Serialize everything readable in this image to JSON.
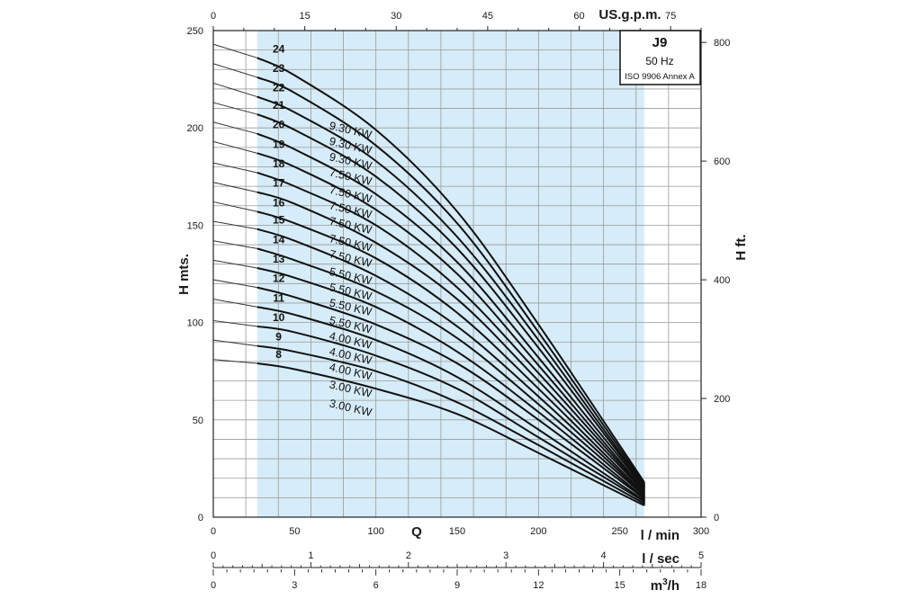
{
  "chart_data": {
    "type": "line",
    "model": "J9",
    "frequency": "50 Hz",
    "standard": "ISO 9906 Annex A",
    "flow_axis_title": "Q",
    "x_unit_label": "l / min",
    "y_left_label": "H mts.",
    "y_right_label": "H ft.",
    "top_axis_label": "US.g.p.m.",
    "lsec_axis_label": "l / sec",
    "m3h_label_base": "m",
    "m3h_label_sup": "3",
    "m3h_label_tail": "/h",
    "x_ticks": [
      "0",
      "50",
      "100",
      "150",
      "200",
      "250",
      "300"
    ],
    "y_left_ticks": [
      "0",
      "50",
      "100",
      "150",
      "200",
      "250"
    ],
    "y_right_ticks": [
      "0",
      "200",
      "400",
      "600",
      "800"
    ],
    "top_ticks": [
      "0",
      "15",
      "30",
      "45",
      "60",
      "75"
    ],
    "lsec_ticks": [
      "0",
      "1",
      "2",
      "3",
      "4",
      "5"
    ],
    "m3h_ticks": [
      "0",
      "3",
      "6",
      "9",
      "12",
      "15",
      "18"
    ],
    "xlim": [
      0,
      300
    ],
    "ylim": [
      0,
      250
    ],
    "y_right_lim": [
      0,
      820
    ],
    "grid": true,
    "operating_range_lpm": [
      27,
      265
    ],
    "operating_range_color": "#d6ecf8",
    "curve_color": "#111111",
    "x": [
      0,
      27,
      50,
      100,
      150,
      200,
      265
    ],
    "series": [
      {
        "name": "24",
        "kw": "9.30 KW",
        "values": [
          243,
          236,
          227,
          199,
          157,
          99,
          18
        ]
      },
      {
        "name": "23",
        "kw": "9.30 KW",
        "values": [
          233,
          226,
          218,
          191,
          151,
          95,
          17
        ]
      },
      {
        "name": "22",
        "kw": "9.30 KW",
        "values": [
          223,
          216,
          208,
          183,
          144,
          91,
          16
        ]
      },
      {
        "name": "21",
        "kw": "7.50 KW",
        "values": [
          213,
          207,
          199,
          175,
          138,
          87,
          15.5
        ]
      },
      {
        "name": "20",
        "kw": "7.50 KW",
        "values": [
          203,
          197,
          189,
          166,
          131,
          82,
          15
        ]
      },
      {
        "name": "19",
        "kw": "7.50 KW",
        "values": [
          193,
          187,
          180,
          158,
          125,
          78,
          14
        ]
      },
      {
        "name": "18",
        "kw": "7.50 KW",
        "values": [
          182,
          177,
          170,
          150,
          118,
          74,
          13.5
        ]
      },
      {
        "name": "17",
        "kw": "7.50 KW",
        "values": [
          172,
          167,
          161,
          141,
          112,
          70,
          13
        ]
      },
      {
        "name": "16",
        "kw": "7.50 KW",
        "values": [
          162,
          157,
          151,
          133,
          105,
          66,
          12
        ]
      },
      {
        "name": "15",
        "kw": "5.50 KW",
        "values": [
          152,
          148,
          142,
          124,
          98,
          62,
          11.5
        ]
      },
      {
        "name": "14",
        "kw": "5.50 KW",
        "values": [
          142,
          138,
          132,
          116,
          92,
          58,
          11
        ]
      },
      {
        "name": "13",
        "kw": "5.50 KW",
        "values": [
          132,
          128,
          123,
          108,
          85,
          54,
          10
        ]
      },
      {
        "name": "12",
        "kw": "5.50 KW",
        "values": [
          122,
          118,
          113,
          99,
          79,
          50,
          9.5
        ]
      },
      {
        "name": "11",
        "kw": "4.00 KW",
        "values": [
          112,
          108,
          104,
          91,
          72,
          45,
          8.5
        ]
      },
      {
        "name": "10",
        "kw": "4.00 KW",
        "values": [
          101,
          98,
          95,
          83,
          66,
          41,
          8
        ]
      },
      {
        "name": "9",
        "kw": "4.00 KW",
        "values": [
          91,
          88,
          85,
          75,
          59,
          37,
          7
        ]
      },
      {
        "name": "8",
        "kw": "3.00 KW",
        "values": [
          81,
          79,
          76,
          66,
          53,
          33,
          6
        ]
      },
      {
        "name": "",
        "kw": "3.00 KW",
        "values": null
      }
    ]
  }
}
